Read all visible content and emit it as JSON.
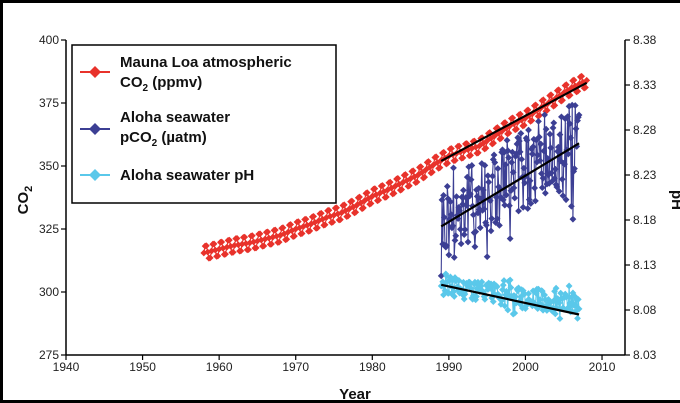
{
  "chart_data": {
    "type": "line",
    "xlabel": "Year",
    "ylabel_left": "CO2",
    "ylabel_right": "pH",
    "xlim": [
      1940,
      2013
    ],
    "ylim_left": [
      275,
      400
    ],
    "ylim_right": [
      8.03,
      8.38
    ],
    "xticks": [
      "1940",
      "1950",
      "1960",
      "1970",
      "1980",
      "1990",
      "2000",
      "2010"
    ],
    "yticks_left": [
      "275",
      "300",
      "325",
      "350",
      "375",
      "400"
    ],
    "yticks_right": [
      "8.03",
      "8.08",
      "8.13",
      "8.18",
      "8.23",
      "8.28",
      "8.33",
      "8.38"
    ],
    "legend_position": "top-left",
    "series": [
      {
        "name": "Mauna Loa atmospheric CO2 (ppmv)",
        "legend_lines": [
          "Mauna Loa atmospheric",
          "CO",
          "2",
          " (ppmv)"
        ],
        "color": "#e8322b",
        "axis": "left",
        "x": [
          1958,
          1960,
          1962,
          1964,
          1966,
          1968,
          1970,
          1972,
          1974,
          1976,
          1978,
          1980,
          1982,
          1984,
          1986,
          1988,
          1990,
          1992,
          1994,
          1996,
          1998,
          2000,
          2002,
          2004,
          2006,
          2008
        ],
        "y": [
          315.5,
          317,
          318.5,
          319.5,
          321,
          322.5,
          325,
          327,
          329.5,
          331.5,
          334.5,
          338,
          340.5,
          343.5,
          346.5,
          350.5,
          354,
          356,
          358,
          362,
          366,
          369,
          373,
          377,
          381,
          384
        ],
        "seasonal_amplitude": 3
      },
      {
        "name": "Aloha seawater pCO2 (µatm)",
        "legend_lines": [
          "Aloha seawater",
          "pCO",
          "2",
          " (µatm)"
        ],
        "color": "#3c3f94",
        "axis": "left",
        "x": [
          1989,
          1990,
          1991,
          1992,
          1993,
          1994,
          1995,
          1996,
          1997,
          1998,
          1999,
          2000,
          2001,
          2002,
          2003,
          2004,
          2005,
          2006,
          2007
        ],
        "y": [
          328,
          330,
          332,
          335,
          334,
          338,
          340,
          341,
          344,
          343,
          346,
          349,
          350,
          352,
          353,
          355,
          356,
          357,
          360
        ],
        "spread": 18
      },
      {
        "name": "Aloha seawater pH",
        "legend_lines": [
          "Aloha seawater pH"
        ],
        "color": "#5ac8ea",
        "axis": "right",
        "x": [
          1989,
          1990,
          1991,
          1992,
          1993,
          1994,
          1995,
          1996,
          1997,
          1998,
          1999,
          2000,
          2001,
          2002,
          2003,
          2004,
          2005,
          2006,
          2007
        ],
        "y": [
          8.11,
          8.108,
          8.106,
          8.103,
          8.104,
          8.101,
          8.099,
          8.097,
          8.096,
          8.095,
          8.094,
          8.093,
          8.092,
          8.091,
          8.09,
          8.09,
          8.089,
          8.088,
          8.087
        ],
        "spread": 0.012
      }
    ],
    "trendlines": [
      {
        "series": "Mauna Loa atmospheric CO2 (ppmv)",
        "axis": "left",
        "x": [
          1989,
          2008
        ],
        "y": [
          352,
          383
        ]
      },
      {
        "series": "Aloha seawater pCO2 (µatm)",
        "axis": "left",
        "x": [
          1989,
          2007
        ],
        "y": [
          326,
          359
        ]
      },
      {
        "series": "Aloha seawater pH",
        "axis": "right",
        "x": [
          1989,
          2007
        ],
        "y": [
          8.108,
          8.075
        ]
      }
    ]
  }
}
